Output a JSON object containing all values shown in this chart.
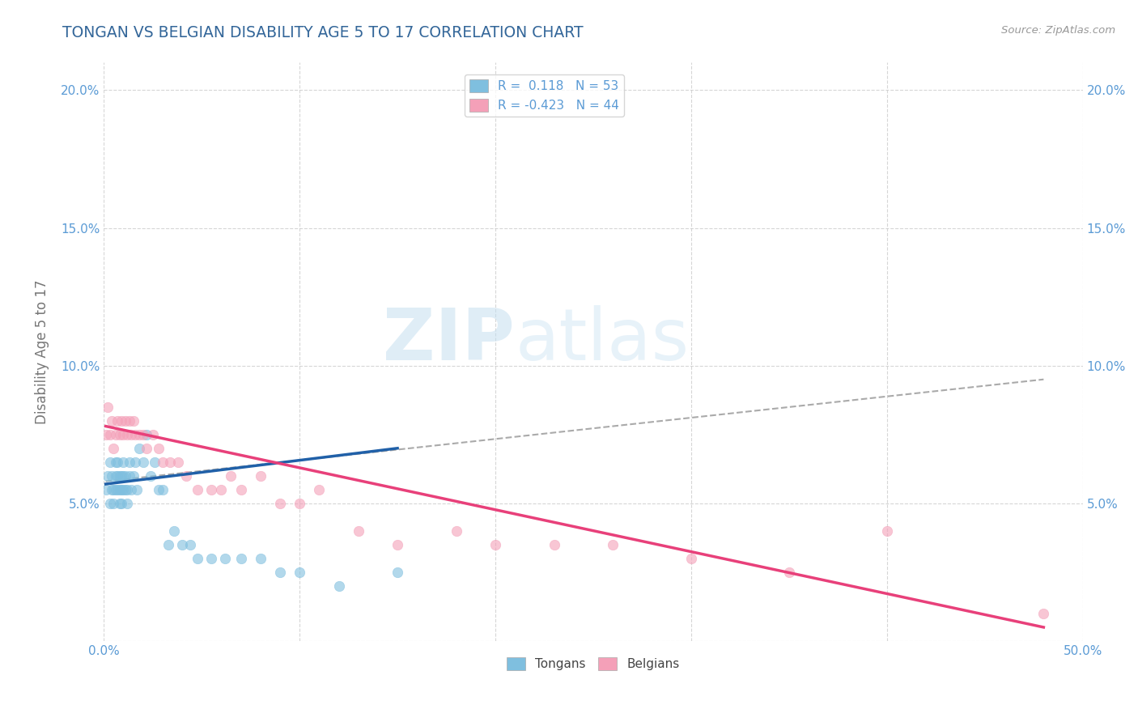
{
  "title": "TONGAN VS BELGIAN DISABILITY AGE 5 TO 17 CORRELATION CHART",
  "source": "Source: ZipAtlas.com",
  "xlabel": "",
  "ylabel": "Disability Age 5 to 17",
  "xlim": [
    0.0,
    0.5
  ],
  "ylim": [
    0.0,
    0.21
  ],
  "xticks": [
    0.0,
    0.1,
    0.2,
    0.3,
    0.4,
    0.5
  ],
  "xticklabels": [
    "0.0%",
    "",
    "",
    "",
    "",
    "50.0%"
  ],
  "yticks": [
    0.0,
    0.05,
    0.1,
    0.15,
    0.2
  ],
  "yticklabels": [
    "",
    "5.0%",
    "10.0%",
    "15.0%",
    "20.0%"
  ],
  "tongan_color": "#7fbfdf",
  "belgian_color": "#f4a0b8",
  "tongan_R": 0.118,
  "tongan_N": 53,
  "belgian_R": -0.423,
  "belgian_N": 44,
  "watermark_text": "ZIPatlas",
  "tongan_line_color": "#2060a8",
  "belgian_line_color": "#e8407a",
  "dashed_line_color": "#aaaaaa",
  "background_color": "#ffffff",
  "grid_color": "#cccccc",
  "title_color": "#336699",
  "axis_label_color": "#777777",
  "tick_color": "#5b9bd5",
  "tongan_scatter_x": [
    0.001,
    0.002,
    0.003,
    0.003,
    0.004,
    0.004,
    0.005,
    0.005,
    0.006,
    0.006,
    0.006,
    0.007,
    0.007,
    0.007,
    0.008,
    0.008,
    0.008,
    0.009,
    0.009,
    0.009,
    0.01,
    0.01,
    0.01,
    0.011,
    0.011,
    0.012,
    0.012,
    0.013,
    0.013,
    0.014,
    0.015,
    0.016,
    0.017,
    0.018,
    0.02,
    0.022,
    0.024,
    0.026,
    0.028,
    0.03,
    0.033,
    0.036,
    0.04,
    0.044,
    0.048,
    0.055,
    0.062,
    0.07,
    0.08,
    0.09,
    0.1,
    0.12,
    0.15
  ],
  "tongan_scatter_y": [
    0.055,
    0.06,
    0.05,
    0.065,
    0.055,
    0.06,
    0.05,
    0.055,
    0.06,
    0.055,
    0.065,
    0.055,
    0.06,
    0.065,
    0.05,
    0.055,
    0.06,
    0.05,
    0.055,
    0.06,
    0.055,
    0.06,
    0.065,
    0.055,
    0.06,
    0.05,
    0.055,
    0.06,
    0.065,
    0.055,
    0.06,
    0.065,
    0.055,
    0.07,
    0.065,
    0.075,
    0.06,
    0.065,
    0.055,
    0.055,
    0.035,
    0.04,
    0.035,
    0.035,
    0.03,
    0.03,
    0.03,
    0.03,
    0.03,
    0.025,
    0.025,
    0.02,
    0.025
  ],
  "belgian_scatter_x": [
    0.001,
    0.002,
    0.003,
    0.004,
    0.005,
    0.006,
    0.007,
    0.008,
    0.009,
    0.01,
    0.011,
    0.012,
    0.013,
    0.014,
    0.015,
    0.016,
    0.018,
    0.02,
    0.022,
    0.025,
    0.028,
    0.03,
    0.034,
    0.038,
    0.042,
    0.048,
    0.055,
    0.06,
    0.065,
    0.07,
    0.08,
    0.09,
    0.1,
    0.11,
    0.13,
    0.15,
    0.18,
    0.2,
    0.23,
    0.26,
    0.3,
    0.35,
    0.4,
    0.48
  ],
  "belgian_scatter_y": [
    0.075,
    0.085,
    0.075,
    0.08,
    0.07,
    0.075,
    0.08,
    0.075,
    0.08,
    0.075,
    0.08,
    0.075,
    0.08,
    0.075,
    0.08,
    0.075,
    0.075,
    0.075,
    0.07,
    0.075,
    0.07,
    0.065,
    0.065,
    0.065,
    0.06,
    0.055,
    0.055,
    0.055,
    0.06,
    0.055,
    0.06,
    0.05,
    0.05,
    0.055,
    0.04,
    0.035,
    0.04,
    0.035,
    0.035,
    0.035,
    0.03,
    0.025,
    0.04,
    0.01
  ],
  "tongan_line_x": [
    0.001,
    0.15
  ],
  "tongan_line_y": [
    0.057,
    0.07
  ],
  "belgian_line_x": [
    0.001,
    0.48
  ],
  "belgian_line_y": [
    0.078,
    0.005
  ],
  "dashed_line_x": [
    0.001,
    0.48
  ],
  "dashed_line_y": [
    0.058,
    0.095
  ]
}
